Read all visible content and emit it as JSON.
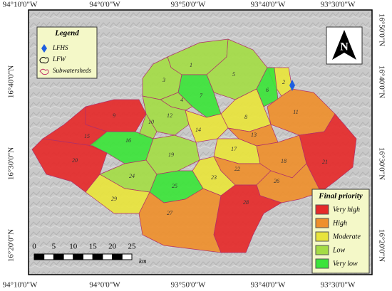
{
  "coordinates": {
    "top": [
      "94°10'0\"W",
      "94°0'0\"W",
      "93°50'0\"W",
      "93°40'0\"W",
      "93°30'0\"W"
    ],
    "bottom": [
      "94°10'0\"W",
      "94°0'0\"W",
      "93°50'0\"W",
      "93°40'0\"W",
      "93°30'0\"W"
    ],
    "left": [
      "16°40'0\"N",
      "16°30'0\"N",
      "16°20'0\"N"
    ],
    "right": [
      "16°50'0\"N",
      "16°40'0\"N",
      "16°30'0\"N",
      "16°20'0\"N"
    ]
  },
  "legend": {
    "title": "Legend",
    "items": [
      "LFHS",
      "LFW",
      "Subwatersheds"
    ]
  },
  "north": "N",
  "scale_bar": {
    "ticks": [
      "0",
      "5",
      "10",
      "15",
      "20",
      "25"
    ],
    "unit": "km"
  },
  "priority_legend": {
    "title": "Final priority",
    "classes": [
      {
        "label": "Very high",
        "color": "#e52a2a"
      },
      {
        "label": "High",
        "color": "#ee8f2c"
      },
      {
        "label": "Moderate",
        "color": "#e8e43c"
      },
      {
        "label": "Low",
        "color": "#a4dc46"
      },
      {
        "label": "Very low",
        "color": "#3ce43a"
      }
    ]
  },
  "subwatersheds": [
    {
      "label": "1",
      "class": "Low"
    },
    {
      "label": "2",
      "class": "Moderate"
    },
    {
      "label": "3",
      "class": "Low"
    },
    {
      "label": "4",
      "class": "Low"
    },
    {
      "label": "5",
      "class": "Low"
    },
    {
      "label": "6",
      "class": "Very low"
    },
    {
      "label": "7",
      "class": "Very low"
    },
    {
      "label": "8",
      "class": "Moderate"
    },
    {
      "label": "9",
      "class": "Very high"
    },
    {
      "label": "10",
      "class": "Low"
    },
    {
      "label": "11",
      "class": "High"
    },
    {
      "label": "12",
      "class": "Low"
    },
    {
      "label": "13",
      "class": "High"
    },
    {
      "label": "14",
      "class": "Moderate"
    },
    {
      "label": "15",
      "class": "Very high"
    },
    {
      "label": "16",
      "class": "Very low"
    },
    {
      "label": "17",
      "class": "Moderate"
    },
    {
      "label": "18",
      "class": "High"
    },
    {
      "label": "19",
      "class": "Low"
    },
    {
      "label": "20",
      "class": "Very high"
    },
    {
      "label": "21",
      "class": "Very high"
    },
    {
      "label": "22",
      "class": "High"
    },
    {
      "label": "23",
      "class": "Moderate"
    },
    {
      "label": "24",
      "class": "Low"
    },
    {
      "label": "25",
      "class": "Very low"
    },
    {
      "label": "26",
      "class": "High"
    },
    {
      "label": "27",
      "class": "High"
    },
    {
      "label": "28",
      "class": "Very high"
    },
    {
      "label": "29",
      "class": "Moderate"
    }
  ]
}
